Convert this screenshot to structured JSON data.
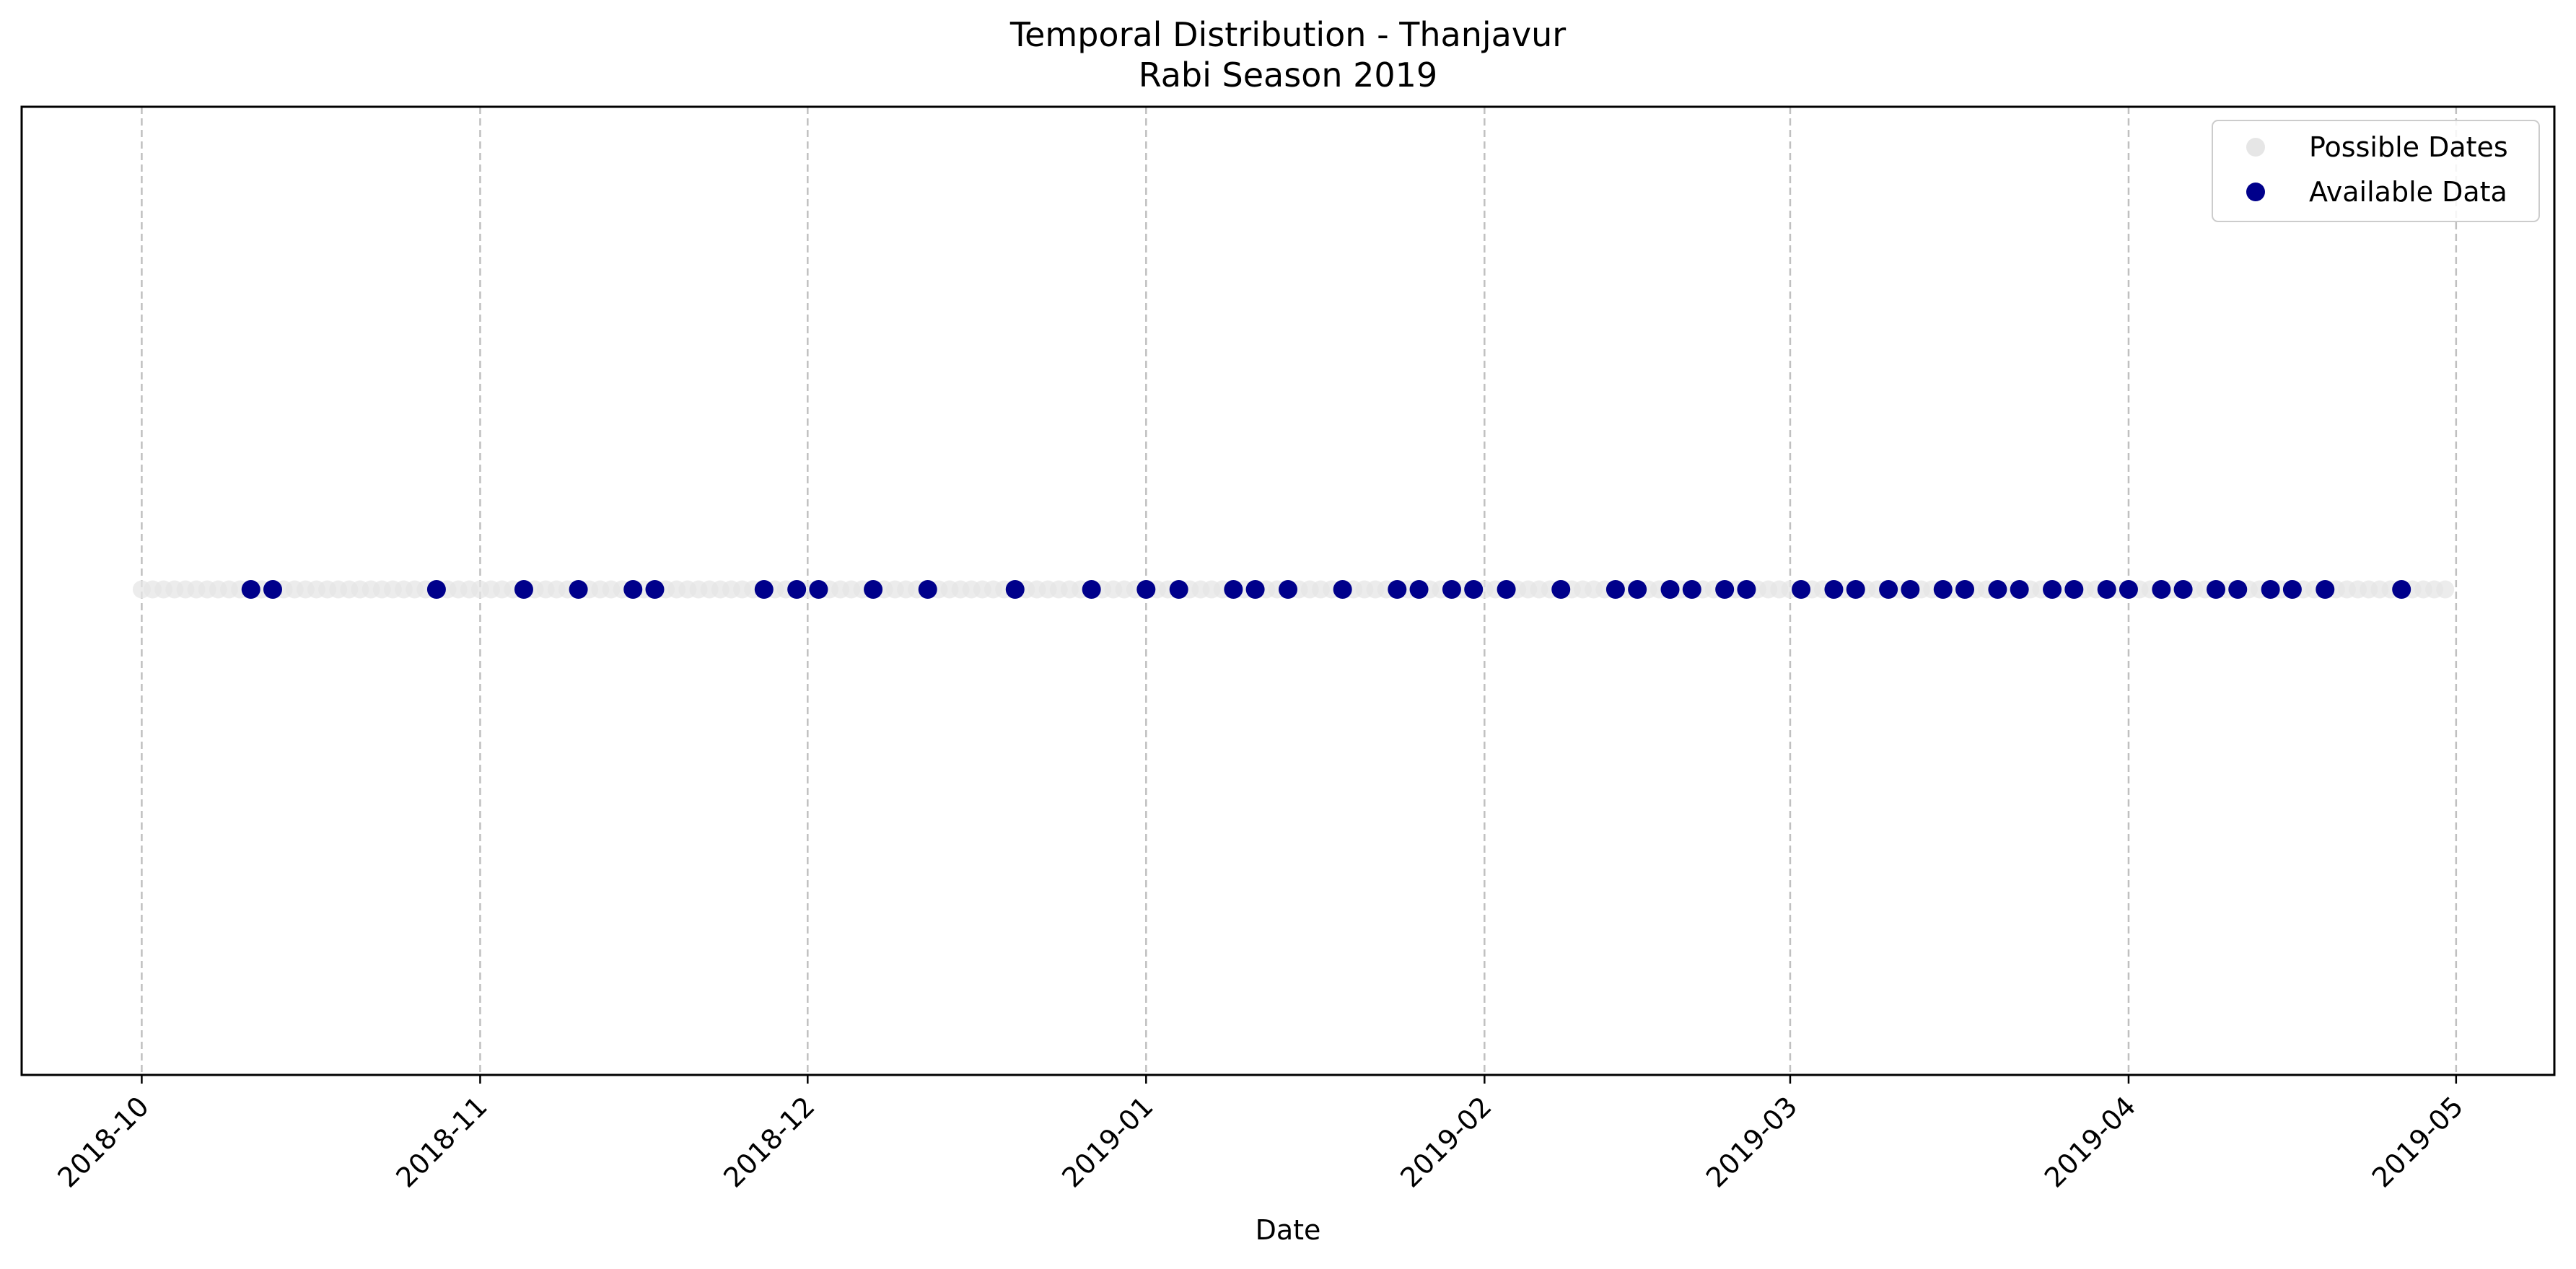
{
  "chart_data": {
    "type": "scatter",
    "title": "Temporal Distribution - Thanjavur",
    "subtitle": "Rabi Season 2019",
    "xlabel": "Date",
    "ylabel": "",
    "x_axis": {
      "scale": "date",
      "range": [
        "2018-09-20",
        "2019-05-10"
      ],
      "ticks": [
        "2018-10",
        "2018-11",
        "2018-12",
        "2019-01",
        "2019-02",
        "2019-03",
        "2019-04",
        "2019-05"
      ],
      "tick_dates": [
        "2018-10-01",
        "2018-11-01",
        "2018-12-01",
        "2019-01-01",
        "2019-02-01",
        "2019-03-01",
        "2019-04-01",
        "2019-05-01"
      ],
      "tick_rotation_deg": 45
    },
    "y_axis": {
      "ticks_visible": false
    },
    "grid": {
      "x": true,
      "y": false,
      "style": "dashed",
      "color": "#c0c0c0"
    },
    "legend": {
      "position": "top-right"
    },
    "series": [
      {
        "name": "Possible Dates",
        "color": "#e6e6e6",
        "marker": "circle",
        "date_range": [
          "2018-10-01",
          "2019-04-30"
        ],
        "frequency": "daily"
      },
      {
        "name": "Available Data",
        "color": "#00008b",
        "marker": "circle",
        "dates": [
          "2018-10-11",
          "2018-10-13",
          "2018-10-28",
          "2018-11-05",
          "2018-11-10",
          "2018-11-15",
          "2018-11-17",
          "2018-11-27",
          "2018-11-30",
          "2018-12-02",
          "2018-12-07",
          "2018-12-12",
          "2018-12-20",
          "2018-12-27",
          "2019-01-01",
          "2019-01-04",
          "2019-01-09",
          "2019-01-11",
          "2019-01-14",
          "2019-01-19",
          "2019-01-24",
          "2019-01-26",
          "2019-01-29",
          "2019-01-31",
          "2019-02-03",
          "2019-02-08",
          "2019-02-13",
          "2019-02-15",
          "2019-02-18",
          "2019-02-20",
          "2019-02-23",
          "2019-02-25",
          "2019-03-02",
          "2019-03-05",
          "2019-03-07",
          "2019-03-10",
          "2019-03-12",
          "2019-03-15",
          "2019-03-17",
          "2019-03-20",
          "2019-03-22",
          "2019-03-25",
          "2019-03-27",
          "2019-03-30",
          "2019-04-01",
          "2019-04-04",
          "2019-04-06",
          "2019-04-09",
          "2019-04-11",
          "2019-04-14",
          "2019-04-16",
          "2019-04-19",
          "2019-04-26"
        ]
      }
    ]
  }
}
